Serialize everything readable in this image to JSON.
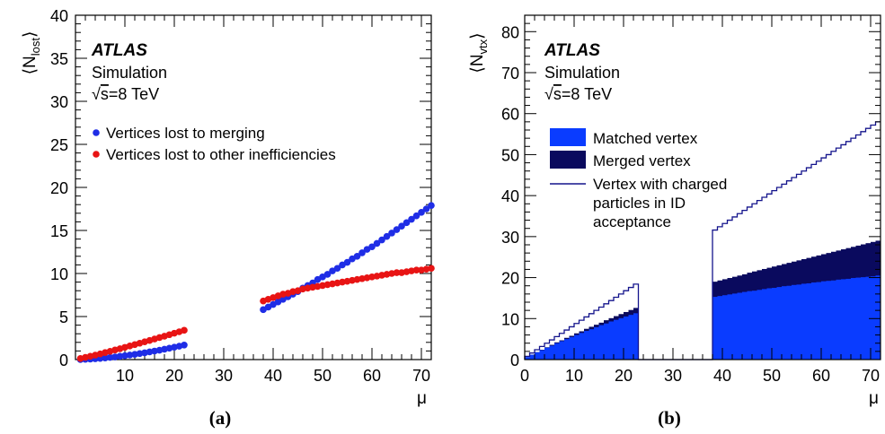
{
  "chart_data": [
    {
      "type": "scatter",
      "panel_label": "(a)",
      "ylabel": "⟨N_lost⟩",
      "xlabel": "μ",
      "xlim": [
        0,
        72
      ],
      "ylim": [
        0,
        40
      ],
      "xticks": [
        "10",
        "20",
        "30",
        "40",
        "50",
        "60",
        "70"
      ],
      "yticks": [
        "0",
        "5",
        "10",
        "15",
        "20",
        "25",
        "30",
        "35",
        "40"
      ],
      "annotations": {
        "experiment": "ATLAS",
        "sim": "Simulation",
        "energy_root": "√",
        "energy": "s=8 TeV"
      },
      "legend_position": "top-left",
      "colors": {
        "merging": "#1f2de6",
        "other": "#e81414"
      },
      "series": [
        {
          "name": "Vertices lost to merging",
          "x": [
            1,
            2,
            3,
            4,
            5,
            6,
            7,
            8,
            9,
            10,
            11,
            12,
            13,
            14,
            15,
            16,
            17,
            18,
            19,
            20,
            21,
            22,
            38,
            39,
            40,
            41,
            42,
            43,
            44,
            45,
            46,
            47,
            48,
            49,
            50,
            51,
            52,
            53,
            54,
            55,
            56,
            57,
            58,
            59,
            60,
            61,
            62,
            63,
            64,
            65,
            66,
            67,
            68,
            69,
            70,
            71,
            72
          ],
          "y": [
            0.01,
            0.03,
            0.06,
            0.1,
            0.14,
            0.19,
            0.25,
            0.31,
            0.38,
            0.45,
            0.53,
            0.61,
            0.7,
            0.79,
            0.89,
            0.99,
            1.09,
            1.2,
            1.32,
            1.44,
            1.56,
            1.69,
            5.8,
            6.1,
            6.4,
            6.7,
            7.0,
            7.3,
            7.6,
            7.9,
            8.3,
            8.6,
            8.9,
            9.3,
            9.6,
            9.9,
            10.3,
            10.6,
            11.0,
            11.3,
            11.7,
            12.0,
            12.4,
            12.8,
            13.1,
            13.5,
            13.9,
            14.3,
            14.7,
            15.1,
            15.5,
            15.9,
            16.3,
            16.7,
            17.1,
            17.5,
            17.9
          ]
        },
        {
          "name": "Vertices lost to other inefficiencies",
          "x": [
            1,
            2,
            3,
            4,
            5,
            6,
            7,
            8,
            9,
            10,
            11,
            12,
            13,
            14,
            15,
            16,
            17,
            18,
            19,
            20,
            21,
            22,
            38,
            39,
            40,
            41,
            42,
            43,
            44,
            45,
            46,
            47,
            48,
            49,
            50,
            51,
            52,
            53,
            54,
            55,
            56,
            57,
            58,
            59,
            60,
            61,
            62,
            63,
            64,
            65,
            66,
            67,
            68,
            69,
            70,
            71,
            72
          ],
          "y": [
            0.12,
            0.25,
            0.38,
            0.52,
            0.66,
            0.81,
            0.96,
            1.11,
            1.26,
            1.42,
            1.58,
            1.74,
            1.9,
            2.06,
            2.22,
            2.39,
            2.56,
            2.72,
            2.89,
            3.06,
            3.23,
            3.4,
            6.8,
            7.0,
            7.2,
            7.4,
            7.6,
            7.7,
            7.9,
            8.0,
            8.2,
            8.3,
            8.4,
            8.5,
            8.6,
            8.7,
            8.8,
            8.9,
            9.0,
            9.1,
            9.2,
            9.3,
            9.4,
            9.5,
            9.6,
            9.7,
            9.8,
            9.9,
            10.0,
            10.1,
            10.1,
            10.2,
            10.3,
            10.4,
            10.4,
            10.5,
            10.6
          ]
        }
      ]
    },
    {
      "type": "area",
      "panel_label": "(b)",
      "ylabel": "⟨N_vtx⟩",
      "xlabel": "μ",
      "xlim": [
        0,
        72
      ],
      "ylim": [
        0,
        84
      ],
      "xticks": [
        "0",
        "10",
        "20",
        "30",
        "40",
        "50",
        "60",
        "70"
      ],
      "yticks": [
        "0",
        "10",
        "20",
        "30",
        "40",
        "50",
        "60",
        "70",
        "80"
      ],
      "annotations": {
        "experiment": "ATLAS",
        "sim": "Simulation",
        "energy_root": "√",
        "energy": "s=8 TeV"
      },
      "legend_position": "top-left",
      "colors": {
        "matched": "#0a3cff",
        "merged": "#0a0a5e",
        "charged": "#14148c"
      },
      "bin_edges": [
        0,
        38
      ],
      "bin_ranges": [
        [
          0,
          23
        ],
        [
          37.6,
          72
        ]
      ],
      "series": [
        {
          "name": "Matched vertex",
          "x_low": [
            0,
            1,
            2,
            3,
            4,
            5,
            6,
            7,
            8,
            9,
            10,
            11,
            12,
            13,
            14,
            15,
            16,
            17,
            18,
            19,
            20,
            21,
            22,
            23,
            24,
            25,
            26,
            27,
            28,
            29,
            30,
            31,
            32,
            33,
            34,
            35,
            36,
            37,
            38,
            39,
            40,
            41,
            42,
            43,
            44,
            45,
            46,
            47,
            48,
            49,
            50,
            51,
            52,
            53,
            54,
            55,
            56,
            57,
            58,
            59,
            60,
            61,
            62,
            63,
            64,
            65,
            66,
            67,
            68,
            69,
            70,
            71
          ],
          "values": [
            0.6,
            1.2,
            1.8,
            2.3,
            2.9,
            3.4,
            4.0,
            4.5,
            5.0,
            5.5,
            6.0,
            6.5,
            7.0,
            7.4,
            7.9,
            8.4,
            8.8,
            9.3,
            9.7,
            10.1,
            10.5,
            10.9,
            11.3,
            0,
            0,
            0,
            0,
            0,
            0,
            0,
            0,
            0,
            0,
            0,
            0,
            0,
            0,
            0,
            15.3,
            15.5,
            15.7,
            15.9,
            16.1,
            16.3,
            16.5,
            16.7,
            16.8,
            17.0,
            17.2,
            17.4,
            17.5,
            17.7,
            17.9,
            18.0,
            18.2,
            18.3,
            18.5,
            18.6,
            18.8,
            18.9,
            19.1,
            19.2,
            19.3,
            19.5,
            19.6,
            19.7,
            19.9,
            20.0,
            20.1,
            20.2,
            20.3,
            20.5
          ]
        },
        {
          "name": "Merged vertex",
          "x_low": [
            0,
            1,
            2,
            3,
            4,
            5,
            6,
            7,
            8,
            9,
            10,
            11,
            12,
            13,
            14,
            15,
            16,
            17,
            18,
            19,
            20,
            21,
            22,
            23,
            24,
            25,
            26,
            27,
            28,
            29,
            30,
            31,
            32,
            33,
            34,
            35,
            36,
            37,
            38,
            39,
            40,
            41,
            42,
            43,
            44,
            45,
            46,
            47,
            48,
            49,
            50,
            51,
            52,
            53,
            54,
            55,
            56,
            57,
            58,
            59,
            60,
            61,
            62,
            63,
            64,
            65,
            66,
            67,
            68,
            69,
            70,
            71
          ],
          "values": [
            0.6,
            1.2,
            1.8,
            2.4,
            3.0,
            3.6,
            4.2,
            4.7,
            5.3,
            5.8,
            6.4,
            6.9,
            7.5,
            8.0,
            8.5,
            9.0,
            9.6,
            10.1,
            10.6,
            11.1,
            11.6,
            12.1,
            12.6,
            0,
            0,
            0,
            0,
            0,
            0,
            0,
            0,
            0,
            0,
            0,
            0,
            0,
            0,
            0,
            19.0,
            19.3,
            19.6,
            19.9,
            20.2,
            20.5,
            20.8,
            21.2,
            21.5,
            21.8,
            22.1,
            22.4,
            22.7,
            23.0,
            23.3,
            23.6,
            23.9,
            24.2,
            24.5,
            24.8,
            25.1,
            25.4,
            25.7,
            26.0,
            26.3,
            26.6,
            26.9,
            27.2,
            27.5,
            27.8,
            28.1,
            28.4,
            28.7,
            29.0
          ]
        },
        {
          "name": "Vertex with charged particles in ID acceptance",
          "x_low": [
            0,
            1,
            2,
            3,
            4,
            5,
            6,
            7,
            8,
            9,
            10,
            11,
            12,
            13,
            14,
            15,
            16,
            17,
            18,
            19,
            20,
            21,
            22,
            23,
            24,
            25,
            26,
            27,
            28,
            29,
            30,
            31,
            32,
            33,
            34,
            35,
            36,
            37,
            38,
            39,
            40,
            41,
            42,
            43,
            44,
            45,
            46,
            47,
            48,
            49,
            50,
            51,
            52,
            53,
            54,
            55,
            56,
            57,
            58,
            59,
            60,
            61,
            62,
            63,
            64,
            65,
            66,
            67,
            68,
            69,
            70,
            71
          ],
          "values": [
            0.8,
            1.6,
            2.4,
            3.2,
            4.0,
            4.8,
            5.6,
            6.4,
            7.2,
            8.0,
            8.8,
            9.6,
            10.4,
            11.2,
            12.0,
            12.8,
            13.6,
            14.4,
            15.2,
            16.0,
            16.8,
            17.6,
            18.4,
            0,
            0,
            0,
            0,
            0,
            0,
            0,
            0,
            0,
            0,
            0,
            0,
            0,
            0,
            0,
            31.6,
            32.4,
            33.2,
            34.0,
            34.8,
            35.6,
            36.4,
            37.2,
            38.0,
            38.8,
            39.6,
            40.4,
            41.2,
            42.0,
            42.8,
            43.6,
            44.4,
            45.2,
            46.0,
            46.8,
            47.6,
            48.4,
            49.2,
            50.0,
            50.8,
            51.6,
            52.4,
            53.2,
            54.0,
            54.8,
            55.6,
            56.4,
            57.2,
            58.0
          ]
        }
      ]
    }
  ]
}
